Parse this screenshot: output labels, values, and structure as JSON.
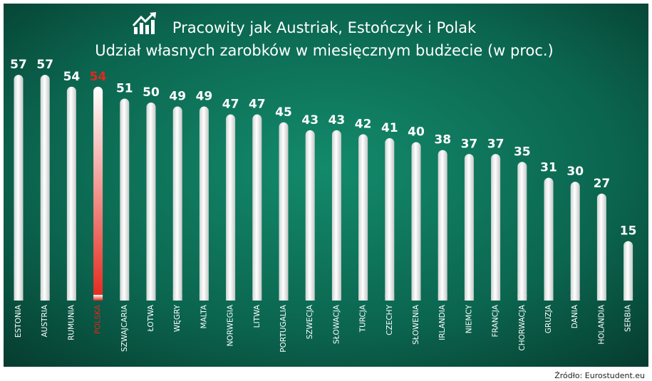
{
  "chart_data": {
    "type": "bar",
    "title": "Pracowity jak Austriak, Estończyk  i Polak",
    "subtitle": "Udział własnych zarobków w miesięcznym budżecie (w proc.)",
    "source": "Źródło: Eurostudent.eu",
    "categories": [
      "ESTONIA",
      "AUSTRIA",
      "RUMUNIA",
      "POLSKA",
      "SZWAJCARIA",
      "ŁOTWA",
      "WĘGRY",
      "MALTA",
      "NORWEGIA",
      "LITWA",
      "PORTUGALIA",
      "SZWECJA",
      "SŁOWACJA",
      "TURCJA",
      "CZECHY",
      "SŁOWENIA",
      "IRLANDIA",
      "NIEMCY",
      "FRANCJA",
      "CHORWACJA",
      "GRUZJA",
      "DANIA",
      "HOLANDIA",
      "SERBIA"
    ],
    "values": [
      57,
      57,
      54,
      54,
      51,
      50,
      49,
      49,
      47,
      47,
      45,
      43,
      43,
      42,
      41,
      40,
      38,
      37,
      37,
      35,
      31,
      30,
      27,
      15
    ],
    "colors": [
      "#ffffff",
      "#ffffff",
      "#ffffff",
      "#e3281c",
      "#ffffff",
      "#ffffff",
      "#ffffff",
      "#ffffff",
      "#ffffff",
      "#ffffff",
      "#ffffff",
      "#ffffff",
      "#ffffff",
      "#ffffff",
      "#ffffff",
      "#ffffff",
      "#ffffff",
      "#ffffff",
      "#ffffff",
      "#ffffff",
      "#ffffff",
      "#ffffff",
      "#ffffff",
      "#ffffff"
    ]
  }
}
